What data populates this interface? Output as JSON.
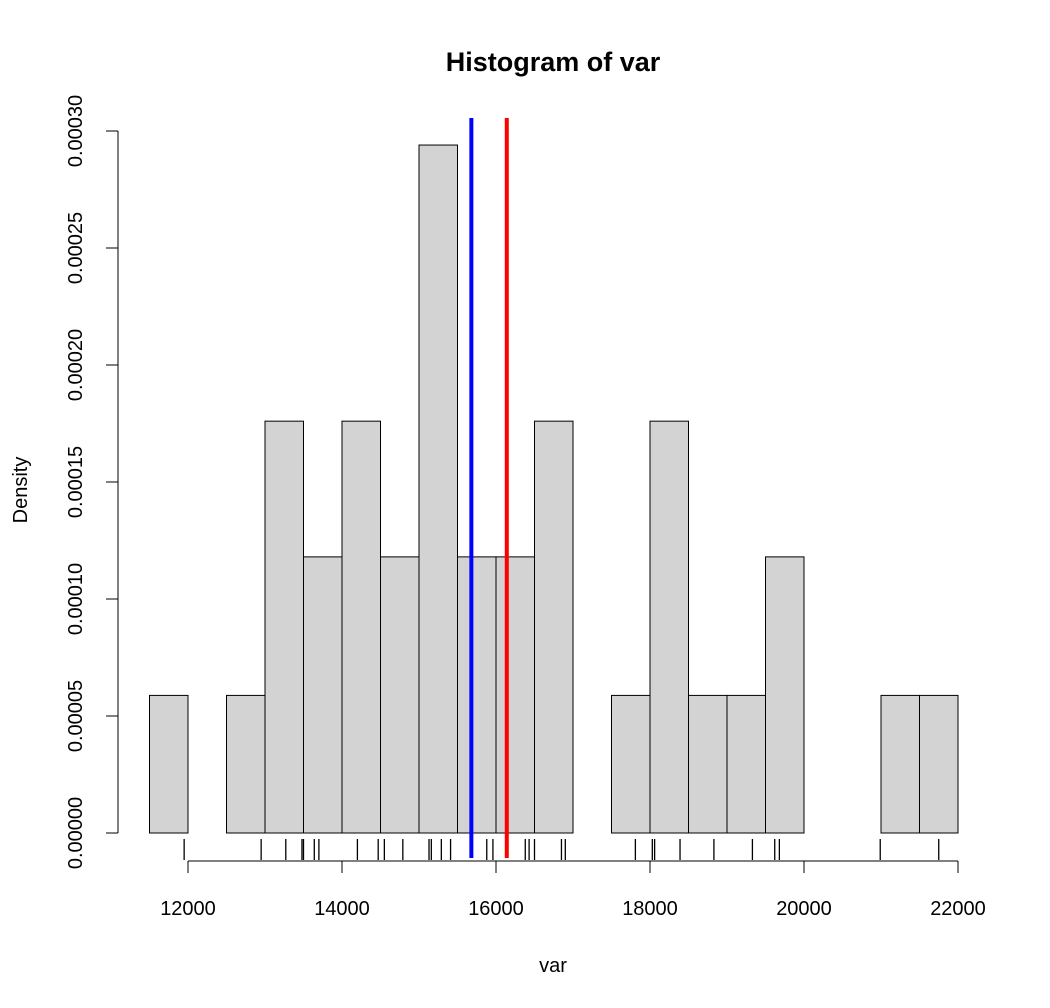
{
  "chart_data": {
    "type": "bar",
    "title": "Histogram of var",
    "xlabel": "var",
    "ylabel": "Density",
    "xlim": [
      11500,
      22000
    ],
    "ylim": [
      0,
      0.0003
    ],
    "bin_width": 500,
    "bins": [
      {
        "start": 11500,
        "end": 12000,
        "density": 5.88e-05
      },
      {
        "start": 12000,
        "end": 12500,
        "density": 0
      },
      {
        "start": 12500,
        "end": 13000,
        "density": 5.88e-05
      },
      {
        "start": 13000,
        "end": 13500,
        "density": 0.000176
      },
      {
        "start": 13500,
        "end": 14000,
        "density": 0.000118
      },
      {
        "start": 14000,
        "end": 14500,
        "density": 0.000176
      },
      {
        "start": 14500,
        "end": 15000,
        "density": 0.000118
      },
      {
        "start": 15000,
        "end": 15500,
        "density": 0.000294
      },
      {
        "start": 15500,
        "end": 16000,
        "density": 0.000118
      },
      {
        "start": 16000,
        "end": 16500,
        "density": 0.000118
      },
      {
        "start": 16500,
        "end": 17000,
        "density": 0.000176
      },
      {
        "start": 17000,
        "end": 17500,
        "density": 0
      },
      {
        "start": 17500,
        "end": 18000,
        "density": 5.88e-05
      },
      {
        "start": 18000,
        "end": 18500,
        "density": 0.000176
      },
      {
        "start": 18500,
        "end": 19000,
        "density": 5.88e-05
      },
      {
        "start": 19000,
        "end": 19500,
        "density": 5.88e-05
      },
      {
        "start": 19500,
        "end": 20000,
        "density": 0.000118
      },
      {
        "start": 20000,
        "end": 20500,
        "density": 0
      },
      {
        "start": 20500,
        "end": 21000,
        "density": 0
      },
      {
        "start": 21000,
        "end": 21500,
        "density": 5.88e-05
      },
      {
        "start": 21500,
        "end": 22000,
        "density": 5.88e-05
      }
    ],
    "x_ticks": [
      12000,
      14000,
      16000,
      18000,
      20000,
      22000
    ],
    "x_tick_labels": [
      "12000",
      "14000",
      "16000",
      "18000",
      "20000",
      "22000"
    ],
    "y_ticks": [
      0,
      5e-05,
      0.0001,
      0.00015,
      0.0002,
      0.00025,
      0.0003
    ],
    "y_tick_labels": [
      "0.00000",
      "0.00005",
      "0.00010",
      "0.00015",
      "0.00020",
      "0.00025",
      "0.00030"
    ],
    "rug": [
      11950,
      12950,
      13270,
      13480,
      13500,
      13640,
      13700,
      14200,
      14470,
      14550,
      14790,
      15130,
      15160,
      15290,
      15410,
      15880,
      15960,
      16380,
      16430,
      16500,
      16850,
      16900,
      17810,
      18030,
      18060,
      18390,
      18830,
      19330,
      19620,
      19680,
      20990,
      21750
    ],
    "vlines": [
      {
        "x": 15680,
        "color": "#0000ff"
      },
      {
        "x": 16140,
        "color": "#ff0000"
      }
    ],
    "bar_fill": "#d3d3d3",
    "bar_stroke": "#000000",
    "grid": false
  }
}
